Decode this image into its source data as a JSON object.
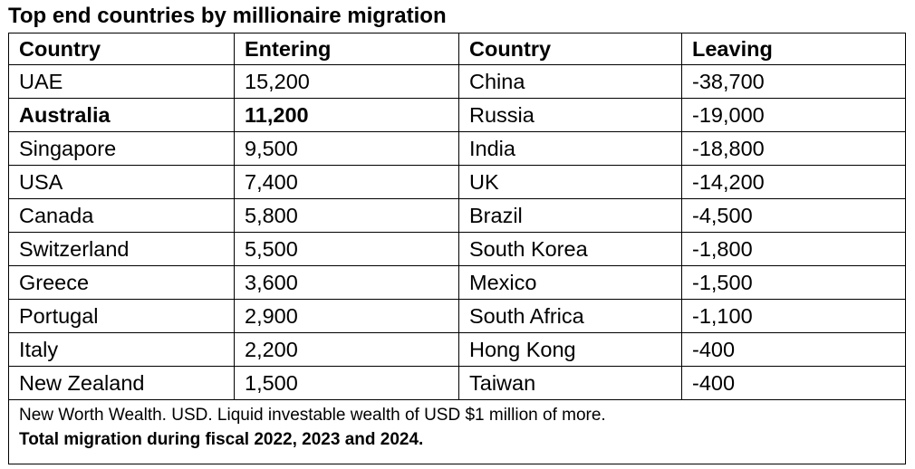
{
  "title": "Top end countries by millionaire migration",
  "headers": [
    "Country",
    "Entering",
    "Country",
    "Leaving"
  ],
  "rows": [
    {
      "entering_country": "UAE",
      "entering": "15,200",
      "leaving_country": "China",
      "leaving": "-38,700",
      "bold": false
    },
    {
      "entering_country": "Australia",
      "entering": "11,200",
      "leaving_country": "Russia",
      "leaving": "-19,000",
      "bold": true
    },
    {
      "entering_country": "Singapore",
      "entering": "9,500",
      "leaving_country": "India",
      "leaving": "-18,800",
      "bold": false
    },
    {
      "entering_country": "USA",
      "entering": "7,400",
      "leaving_country": "UK",
      "leaving": "-14,200",
      "bold": false
    },
    {
      "entering_country": "Canada",
      "entering": "5,800",
      "leaving_country": "Brazil",
      "leaving": "-4,500",
      "bold": false
    },
    {
      "entering_country": "Switzerland",
      "entering": "5,500",
      "leaving_country": "South Korea",
      "leaving": "-1,800",
      "bold": false
    },
    {
      "entering_country": "Greece",
      "entering": "3,600",
      "leaving_country": "Mexico",
      "leaving": "-1,500",
      "bold": false
    },
    {
      "entering_country": "Portugal",
      "entering": "2,900",
      "leaving_country": "South Africa",
      "leaving": "-1,100",
      "bold": false
    },
    {
      "entering_country": "Italy",
      "entering": "2,200",
      "leaving_country": "Hong Kong",
      "leaving": "-400",
      "bold": false
    },
    {
      "entering_country": "New Zealand",
      "entering": "1,500",
      "leaving_country": "Taiwan",
      "leaving": "-400",
      "bold": false
    }
  ],
  "notes": {
    "source": "New Worth Wealth.  USD.  Liquid investable wealth of USD $1 million of more.",
    "period": "Total migration during fiscal 2022, 2023 and 2024."
  }
}
